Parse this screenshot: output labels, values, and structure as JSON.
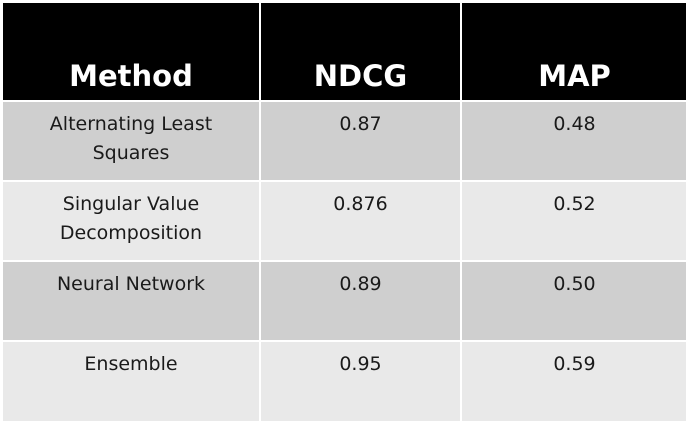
{
  "chart_data": {
    "type": "table",
    "columns": [
      "Method",
      "NDCG",
      "MAP"
    ],
    "rows": [
      {
        "method_line1": "Alternating Least",
        "method_line2": "Squares",
        "ndcg": "0.87",
        "map": "0.48"
      },
      {
        "method_line1": "Singular Value",
        "method_line2": "Decomposition",
        "ndcg": "0.876",
        "map": "0.52"
      },
      {
        "method_line1": "Neural Network",
        "method_line2": "",
        "ndcg": "0.89",
        "map": "0.50"
      },
      {
        "method_line1": "Ensemble",
        "method_line2": "",
        "ndcg": "0.95",
        "map": "0.59"
      }
    ]
  },
  "colors": {
    "header_bg": "#000000",
    "header_text": "#ffffff",
    "row_dark": "#cfcfcf",
    "row_light": "#e9e9e9",
    "text": "#1a1a1a"
  }
}
